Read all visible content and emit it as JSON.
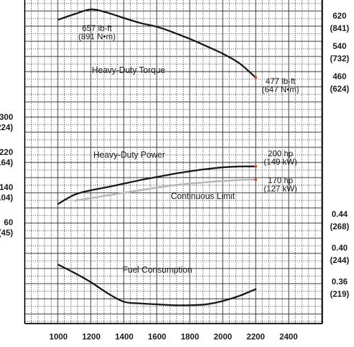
{
  "chart_data": {
    "type": "line",
    "title": "",
    "xlabel": "",
    "x_ticks": [
      "1000",
      "1200",
      "1400",
      "1600",
      "1800",
      "2000",
      "2200",
      "2400"
    ],
    "xlim": [
      1000,
      2400
    ],
    "left_axis": {
      "ticks": [
        {
          "value": 300,
          "label": "300",
          "metric": "(224)"
        },
        {
          "value": 220,
          "label": "220",
          "metric": "(164)"
        },
        {
          "value": 140,
          "label": "140",
          "metric": "(104)"
        },
        {
          "value": 60,
          "label": "60",
          "metric": "(45)"
        }
      ]
    },
    "right_axis_torque": {
      "ticks": [
        {
          "value": 620,
          "label": "620",
          "metric": "(841)"
        },
        {
          "value": 540,
          "label": "540",
          "metric": "(732)"
        },
        {
          "value": 460,
          "label": "460",
          "metric": "(624)"
        }
      ]
    },
    "right_axis_fuel": {
      "ticks": [
        {
          "value": 0.44,
          "label": "0.44",
          "metric": "(268)"
        },
        {
          "value": 0.4,
          "label": "0.40",
          "metric": "(244)"
        },
        {
          "value": 0.36,
          "label": "0.36",
          "metric": "(219)"
        }
      ]
    },
    "series": [
      {
        "name": "Heavy-Duty Torque",
        "axis": "torque",
        "color": "#1a1a1a",
        "x": [
          1000,
          1100,
          1200,
          1300,
          1400,
          1500,
          1600,
          1700,
          1800,
          1900,
          2000,
          2100,
          2200
        ],
        "values": [
          630,
          645,
          657,
          648,
          634,
          621,
          611,
          596,
          579,
          560,
          540,
          515,
          477
        ],
        "start_label": {
          "line1": "657 lb-ft",
          "line2": "(891 N•m)"
        },
        "end_label": {
          "line1": "477 lb-ft",
          "line2": "(647 N•m)"
        }
      },
      {
        "name": "Heavy-Duty Power",
        "axis": "power",
        "color": "#1a1a1a",
        "x": [
          1000,
          1100,
          1200,
          1300,
          1400,
          1500,
          1600,
          1700,
          1800,
          1900,
          2000,
          2100,
          2200
        ],
        "values": [
          115,
          136,
          146,
          153,
          161,
          169,
          176,
          183,
          189,
          194,
          198,
          200,
          200
        ],
        "end_label": {
          "line1": "200 hp",
          "line2": "(149 kW)"
        }
      },
      {
        "name": "Continuous Limit",
        "axis": "power",
        "color": "#b8b8b8",
        "x": [
          1100,
          1200,
          1300,
          1400,
          1500,
          1600,
          1700,
          1800,
          1900,
          2000,
          2100,
          2200
        ],
        "values": [
          122,
          128,
          134,
          140,
          146,
          152,
          157,
          161,
          164,
          167,
          169,
          170
        ],
        "end_label": {
          "line1": "170 hp",
          "line2": "(127 kW)"
        }
      },
      {
        "name": "Fuel Consumption",
        "axis": "fuel",
        "color": "#1a1a1a",
        "x": [
          1000,
          1100,
          1200,
          1300,
          1400,
          1500,
          1600,
          1700,
          1800,
          1900,
          2000,
          2100,
          2200
        ],
        "values": [
          0.389,
          0.379,
          0.368,
          0.355,
          0.345,
          0.343,
          0.342,
          0.341,
          0.341,
          0.342,
          0.346,
          0.352,
          0.36
        ]
      }
    ],
    "grid": true
  }
}
